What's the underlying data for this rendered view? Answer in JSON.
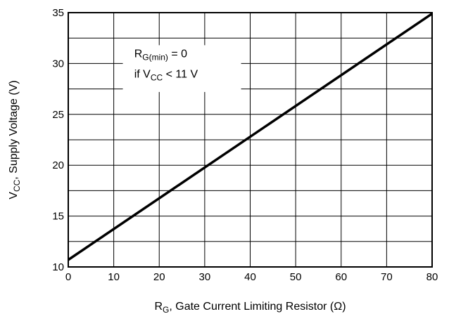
{
  "chart_data": {
    "type": "line",
    "title": "",
    "xlabel": {
      "main": "R",
      "sub": "G",
      "rest": ", Gate Current Limiting Resistor (Ω)"
    },
    "ylabel": {
      "main": "V",
      "sub": "CC",
      "rest": ", Supply Voltage (V)"
    },
    "xlim": [
      0,
      80
    ],
    "ylim": [
      10,
      35
    ],
    "x_ticks": [
      0,
      10,
      20,
      30,
      40,
      50,
      60,
      70,
      80
    ],
    "y_ticks": [
      10,
      15,
      20,
      25,
      30,
      35
    ],
    "grid": {
      "x_step": 10,
      "y_step": 2.5
    },
    "series": [
      {
        "x": [
          0,
          80
        ],
        "y": [
          10.7,
          34.9
        ],
        "color": "#000000"
      }
    ],
    "annotation": {
      "line1": {
        "main": "R",
        "sub": "G(min)",
        "rest": " = 0"
      },
      "line2": {
        "pre": "if V",
        "sub": "CC",
        "rest": " < 11 V"
      }
    }
  }
}
